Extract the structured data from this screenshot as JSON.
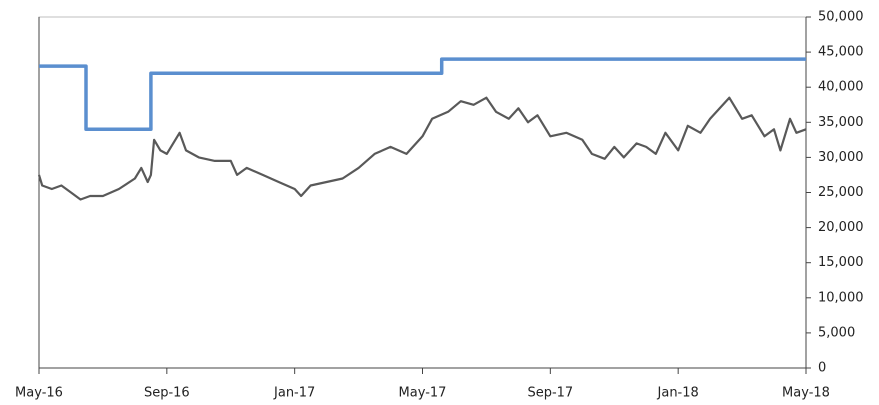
{
  "chart_data": {
    "type": "line",
    "xlim": [
      0,
      24
    ],
    "xticks": [
      {
        "value": 0,
        "label": "May-16"
      },
      {
        "value": 4,
        "label": "Sep-16"
      },
      {
        "value": 8,
        "label": "Jan-17"
      },
      {
        "value": 12,
        "label": "May-17"
      },
      {
        "value": 16,
        "label": "Sep-17"
      },
      {
        "value": 20,
        "label": "Jan-18"
      },
      {
        "value": 24,
        "label": "May-18"
      }
    ],
    "ylim": [
      0,
      50000
    ],
    "yticks": [
      0,
      {
        "value": 5000,
        "label": "5,000"
      },
      {
        "value": 10000,
        "label": "10,000"
      },
      {
        "value": 15000,
        "label": "15,000"
      },
      {
        "value": 20000,
        "label": "20,000"
      },
      {
        "value": 25000,
        "label": "25,000"
      },
      {
        "value": 30000,
        "label": "30,000"
      },
      {
        "value": 35000,
        "label": "35,000"
      },
      {
        "value": 40000,
        "label": "40,000"
      },
      {
        "value": 45000,
        "label": "45,000"
      },
      {
        "value": 50000,
        "label": "50,000"
      }
    ],
    "series": [
      {
        "color": "#5b8fcf",
        "x": [
          0,
          1.47,
          1.47,
          3.5,
          3.5,
          12.6,
          12.6,
          24
        ],
        "values": [
          43000,
          43000,
          34000,
          34000,
          42000,
          42000,
          44000,
          44000
        ]
      },
      {
        "color": "#595959",
        "x": [
          0,
          0.1,
          0.4,
          0.7,
          1,
          1.3,
          1.6,
          2,
          2.5,
          3,
          3.2,
          3.4,
          3.5,
          3.6,
          3.8,
          4,
          4.4,
          4.6,
          5,
          5.5,
          6,
          6.2,
          6.5,
          7,
          7.5,
          8,
          8.2,
          8.5,
          9,
          9.5,
          10,
          10.5,
          11,
          11.5,
          12,
          12.3,
          12.8,
          13.2,
          13.6,
          14,
          14.3,
          14.7,
          15,
          15.3,
          15.6,
          16,
          16.5,
          17,
          17.3,
          17.7,
          18,
          18.3,
          18.7,
          19,
          19.3,
          19.6,
          20,
          20.3,
          20.7,
          21,
          21.3,
          21.6,
          22,
          22.3,
          22.7,
          23,
          23.2,
          23.5,
          23.7,
          24
        ],
        "values": [
          27500,
          26000,
          25500,
          26000,
          25000,
          24000,
          24500,
          24500,
          25500,
          27000,
          28500,
          26500,
          27500,
          32500,
          31000,
          30500,
          33500,
          31000,
          30000,
          29500,
          29500,
          27500,
          28500,
          27500,
          26500,
          25500,
          24500,
          26000,
          26500,
          27000,
          28500,
          30500,
          31500,
          30500,
          33000,
          35500,
          36500,
          38000,
          37500,
          38500,
          36500,
          35500,
          37000,
          35000,
          36000,
          33000,
          33500,
          32500,
          30500,
          29800,
          31500,
          30000,
          32000,
          31500,
          30500,
          33500,
          31000,
          34500,
          33500,
          35500,
          37000,
          38500,
          35500,
          36000,
          33000,
          34000,
          31000,
          35500,
          33500,
          34000
        ]
      }
    ]
  }
}
